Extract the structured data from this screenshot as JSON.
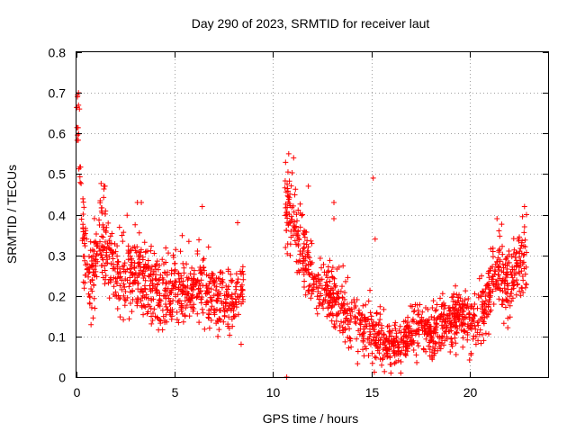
{
  "chart_data": {
    "type": "scatter",
    "title": "Day 290 of 2023, SRMTID for receiver laut",
    "xlabel": "GPS time / hours",
    "ylabel": "SRMTID / TECUs",
    "xlim": [
      0,
      24
    ],
    "ylim": [
      0,
      0.8
    ],
    "xticks": [
      0,
      5,
      10,
      15,
      20
    ],
    "yticks": [
      0,
      0.1,
      0.2,
      0.3,
      0.4,
      0.5,
      0.6,
      0.7,
      0.8
    ],
    "x_tick_labels": [
      "0",
      "5",
      "10",
      "15",
      "20"
    ],
    "y_tick_labels": [
      "0",
      "0.1",
      "0.2",
      "0.3",
      "0.4",
      "0.5",
      "0.6",
      "0.7",
      "0.8"
    ],
    "grid": true,
    "marker": "+",
    "color": "#ff0000",
    "trend": [
      [
        0.0,
        0.63
      ],
      [
        0.05,
        0.67
      ],
      [
        0.15,
        0.55
      ],
      [
        0.25,
        0.44
      ],
      [
        0.4,
        0.33
      ],
      [
        0.6,
        0.26
      ],
      [
        0.8,
        0.22
      ],
      [
        1.0,
        0.33
      ],
      [
        1.3,
        0.35
      ],
      [
        1.5,
        0.3
      ],
      [
        2.0,
        0.27
      ],
      [
        2.5,
        0.25
      ],
      [
        3.0,
        0.27
      ],
      [
        3.5,
        0.24
      ],
      [
        4.0,
        0.23
      ],
      [
        4.5,
        0.21
      ],
      [
        5.0,
        0.21
      ],
      [
        5.5,
        0.22
      ],
      [
        6.0,
        0.21
      ],
      [
        6.5,
        0.23
      ],
      [
        7.0,
        0.2
      ],
      [
        7.5,
        0.19
      ],
      [
        8.0,
        0.2
      ],
      [
        8.5,
        0.21
      ],
      [
        10.7,
        0.42
      ],
      [
        11.0,
        0.38
      ],
      [
        11.3,
        0.33
      ],
      [
        11.6,
        0.3
      ],
      [
        12.0,
        0.25
      ],
      [
        12.5,
        0.2
      ],
      [
        13.0,
        0.2
      ],
      [
        13.5,
        0.17
      ],
      [
        14.0,
        0.13
      ],
      [
        14.5,
        0.12
      ],
      [
        15.0,
        0.11
      ],
      [
        15.5,
        0.1
      ],
      [
        16.0,
        0.07
      ],
      [
        16.5,
        0.08
      ],
      [
        17.0,
        0.1
      ],
      [
        17.5,
        0.14
      ],
      [
        18.0,
        0.1
      ],
      [
        18.5,
        0.12
      ],
      [
        19.0,
        0.14
      ],
      [
        19.5,
        0.15
      ],
      [
        20.0,
        0.13
      ],
      [
        20.5,
        0.15
      ],
      [
        21.0,
        0.21
      ],
      [
        21.4,
        0.27
      ],
      [
        21.8,
        0.22
      ],
      [
        22.3,
        0.24
      ],
      [
        22.8,
        0.28
      ]
    ],
    "spread": [
      [
        0.0,
        0.06
      ],
      [
        0.3,
        0.06
      ],
      [
        1.0,
        0.07
      ],
      [
        3.0,
        0.07
      ],
      [
        5.0,
        0.06
      ],
      [
        8.5,
        0.05
      ],
      [
        10.7,
        0.07
      ],
      [
        12.0,
        0.06
      ],
      [
        14.0,
        0.04
      ],
      [
        16.0,
        0.03
      ],
      [
        17.5,
        0.04
      ],
      [
        20.0,
        0.04
      ],
      [
        21.5,
        0.06
      ],
      [
        22.8,
        0.06
      ]
    ],
    "spikes": [
      [
        0.05,
        0.69
      ],
      [
        0.1,
        0.7
      ],
      [
        0.15,
        0.66
      ],
      [
        1.4,
        0.47
      ],
      [
        1.45,
        0.47
      ],
      [
        3.1,
        0.43
      ],
      [
        3.3,
        0.43
      ],
      [
        6.4,
        0.42
      ],
      [
        8.2,
        0.38
      ],
      [
        10.8,
        0.55
      ],
      [
        11.05,
        0.54
      ],
      [
        11.8,
        0.47
      ],
      [
        11.5,
        0.4
      ],
      [
        13.1,
        0.43
      ],
      [
        13.1,
        0.39
      ],
      [
        15.1,
        0.49
      ],
      [
        15.2,
        0.34
      ],
      [
        21.4,
        0.39
      ],
      [
        21.5,
        0.36
      ],
      [
        22.8,
        0.42
      ],
      [
        22.9,
        0.4
      ],
      [
        10.7,
        0.0
      ]
    ],
    "segments": [
      [
        0,
        8.5
      ],
      [
        10.6,
        22.9
      ]
    ],
    "points_per_hour": 95,
    "random_seed": 290
  }
}
